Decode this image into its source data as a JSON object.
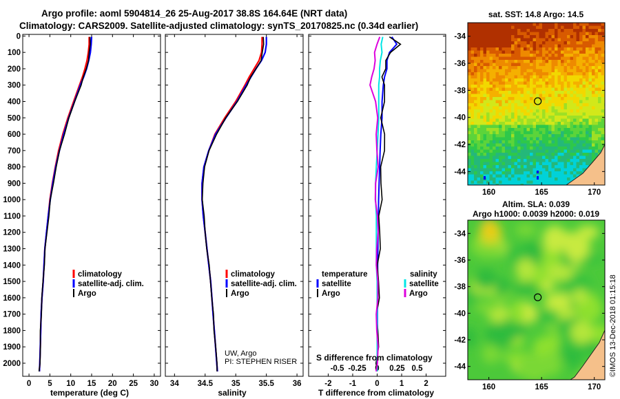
{
  "header": {
    "line1": "Argo profile: aoml 5904814_26 25-Aug-2017 38.8S 164.64E (NRT data)",
    "line2": "Climatology: CARS2009. Satellite-adjusted climatology: synTS_20170825.nc (0.34d earlier)"
  },
  "colors": {
    "climatology": "#ff0000",
    "satellite": "#0000ff",
    "argo": "#000000",
    "sal_satellite": "#00e5e5",
    "sal_argo": "#dd00dd",
    "land": "#f5c08a"
  },
  "chart_data": [
    {
      "type": "line",
      "name": "temperature-profile",
      "xlabel": "temperature (deg C)",
      "ylabel": "",
      "xlim": [
        -1.5,
        31.5
      ],
      "ylim": [
        2080,
        -10
      ],
      "xticks": [
        "0",
        "5",
        "10",
        "15",
        "20",
        "25",
        "30"
      ],
      "yticks": [
        "0",
        "100",
        "200",
        "300",
        "400",
        "500",
        "600",
        "700",
        "800",
        "900",
        "1000",
        "1100",
        "1200",
        "1300",
        "1400",
        "1500",
        "1600",
        "1700",
        "1800",
        "1900",
        "2000"
      ],
      "legend": [
        "climatology",
        "satellite-adj. clim.",
        "Argo"
      ],
      "depth": [
        5,
        50,
        100,
        150,
        200,
        250,
        300,
        400,
        500,
        600,
        700,
        800,
        900,
        1000,
        1100,
        1200,
        1300,
        1400,
        1500,
        1600,
        1700,
        1800,
        1900,
        2000,
        2050
      ],
      "series": [
        {
          "name": "climatology",
          "values": [
            14.4,
            14.4,
            14.2,
            13.9,
            13.4,
            12.8,
            12.1,
            10.7,
            9.3,
            8.1,
            7.1,
            6.3,
            5.6,
            5.0,
            4.6,
            4.2,
            3.8,
            3.6,
            3.4,
            3.1,
            2.9,
            2.8,
            2.7,
            2.6,
            2.5
          ]
        },
        {
          "name": "satellite-adj. clim.",
          "values": [
            15.0,
            14.9,
            14.7,
            14.3,
            13.8,
            13.1,
            12.3,
            10.9,
            9.5,
            8.3,
            7.3,
            6.4,
            5.7,
            5.1,
            4.6,
            4.2,
            3.8,
            3.6,
            3.4,
            3.1,
            2.9,
            2.8,
            2.7,
            2.6,
            2.5
          ]
        },
        {
          "name": "Argo",
          "values": [
            14.6,
            14.6,
            14.5,
            14.2,
            13.7,
            13.1,
            12.4,
            11.0,
            9.6,
            8.4,
            7.4,
            6.5,
            5.8,
            5.2,
            4.7,
            4.3,
            3.9,
            3.6,
            3.4,
            3.1,
            2.9,
            2.8,
            2.7,
            2.6,
            2.5
          ]
        }
      ]
    },
    {
      "type": "line",
      "name": "salinity-profile",
      "xlabel": "salinity",
      "xlim": [
        33.85,
        36.1
      ],
      "ylim": [
        2080,
        -10
      ],
      "xticks": [
        "34",
        "34.5",
        "35",
        "35.5",
        "36"
      ],
      "legend": [
        "climatology",
        "satellite-adj. clim.",
        "Argo"
      ],
      "annotation": [
        "UW, Argo",
        "PI: STEPHEN RISER"
      ],
      "depth": [
        5,
        50,
        100,
        150,
        200,
        250,
        300,
        400,
        500,
        600,
        700,
        800,
        900,
        1000,
        1100,
        1200,
        1300,
        1400,
        1500,
        1600,
        1700,
        1800,
        1900,
        2000,
        2050
      ],
      "series": [
        {
          "name": "climatology",
          "values": [
            35.43,
            35.43,
            35.42,
            35.38,
            35.3,
            35.22,
            35.15,
            35.0,
            34.82,
            34.66,
            34.56,
            34.48,
            34.45,
            34.45,
            34.47,
            34.5,
            34.53,
            34.56,
            34.59,
            34.61,
            34.63,
            34.65,
            34.67,
            34.69,
            34.7
          ]
        },
        {
          "name": "satellite-adj. clim.",
          "values": [
            35.5,
            35.5,
            35.48,
            35.42,
            35.33,
            35.25,
            35.17,
            35.02,
            34.84,
            34.67,
            34.56,
            34.48,
            34.45,
            34.45,
            34.47,
            34.5,
            34.53,
            34.56,
            34.59,
            34.61,
            34.63,
            34.65,
            34.67,
            34.69,
            34.7
          ]
        },
        {
          "name": "Argo",
          "values": [
            35.45,
            35.45,
            35.44,
            35.41,
            35.33,
            35.25,
            35.18,
            35.03,
            34.84,
            34.68,
            34.57,
            34.49,
            34.46,
            34.46,
            34.48,
            34.5,
            34.53,
            34.56,
            34.59,
            34.61,
            34.63,
            34.65,
            34.67,
            34.69,
            34.7
          ]
        }
      ]
    },
    {
      "type": "line",
      "name": "difference-profile",
      "xlabel": "T difference from climatology",
      "xlabel2": "S difference from climatology",
      "xlim": [
        -2.8,
        2.8
      ],
      "ylim": [
        2080,
        -10
      ],
      "xticks": [
        "-2",
        "-1",
        "0",
        "1",
        "2"
      ],
      "xticks2": [
        "-0.5",
        "-0.25",
        "0",
        "0.25",
        "0.5"
      ],
      "legend_temperature": [
        "temperature",
        "satellite",
        "Argo"
      ],
      "legend_salinity": [
        "salinity",
        "satellite",
        "Argo"
      ],
      "depth": [
        5,
        50,
        100,
        150,
        200,
        250,
        300,
        400,
        500,
        600,
        700,
        800,
        900,
        1000,
        1100,
        1200,
        1300,
        1400,
        1500,
        1600,
        1700,
        1800,
        1900,
        2000,
        2050
      ],
      "series": [
        {
          "name": "temperature satellite",
          "values": [
            0.6,
            0.8,
            0.5,
            0.4,
            0.4,
            0.3,
            0.25,
            0.2,
            0.2,
            0.15,
            0.12,
            0.1,
            0.08,
            0.06,
            0.05,
            0.04,
            0.03,
            0.02,
            0.02,
            0.01,
            0.01,
            0.01,
            0.0,
            0.0,
            0.0
          ]
        },
        {
          "name": "temperature Argo",
          "values": [
            0.5,
            0.9,
            0.6,
            0.35,
            0.3,
            0.25,
            0.3,
            0.25,
            0.2,
            0.3,
            0.25,
            0.2,
            0.15,
            0.15,
            0.12,
            0.1,
            0.08,
            0.06,
            0.05,
            0.04,
            0.03,
            0.02,
            0.01,
            0.01,
            0.0
          ]
        },
        {
          "name": "salinity satellite",
          "values": [
            0.07,
            0.05,
            0.06,
            0.04,
            0.03,
            0.03,
            0.02,
            0.02,
            0.02,
            0.01,
            0.0,
            -0.01,
            -0.02,
            -0.02,
            -0.01,
            -0.01,
            -0.01,
            -0.01,
            0.0,
            0.0,
            0.0,
            0.0,
            0.0,
            0.0,
            0.0
          ]
        },
        {
          "name": "salinity Argo",
          "values": [
            0.02,
            0.0,
            -0.02,
            -0.03,
            -0.05,
            -0.06,
            -0.08,
            -0.03,
            0.0,
            0.0,
            0.0,
            0.0,
            -0.02,
            -0.01,
            0.0,
            0.0,
            0.0,
            0.0,
            0.0,
            0.0,
            0.0,
            0.0,
            0.0,
            0.0,
            0.0
          ]
        }
      ]
    },
    {
      "type": "heatmap",
      "name": "sst-map",
      "title": "sat. SST: 14.8 Argo: 14.5",
      "xlim": [
        158,
        171
      ],
      "ylim": [
        -45,
        -33
      ],
      "xticks": [
        "160",
        "165",
        "170"
      ],
      "yticks": [
        "-34",
        "-36",
        "-38",
        "-40",
        "-42",
        "-44"
      ],
      "marker": {
        "lon": 164.64,
        "lat": -38.8
      }
    },
    {
      "type": "heatmap",
      "name": "sla-map",
      "title": "Altim. SLA: 0.039",
      "subtitle": "Argo h1000: 0.0039 h2000: 0.019",
      "xlim": [
        158,
        171
      ],
      "ylim": [
        -45,
        -33
      ],
      "xticks": [
        "160",
        "165",
        "170"
      ],
      "yticks": [
        "-34",
        "-36",
        "-38",
        "-40",
        "-42",
        "-44"
      ],
      "marker": {
        "lon": 164.64,
        "lat": -38.8
      }
    }
  ],
  "footer": {
    "credit": "©IMOS 13-Dec-2018 01:15:18"
  }
}
